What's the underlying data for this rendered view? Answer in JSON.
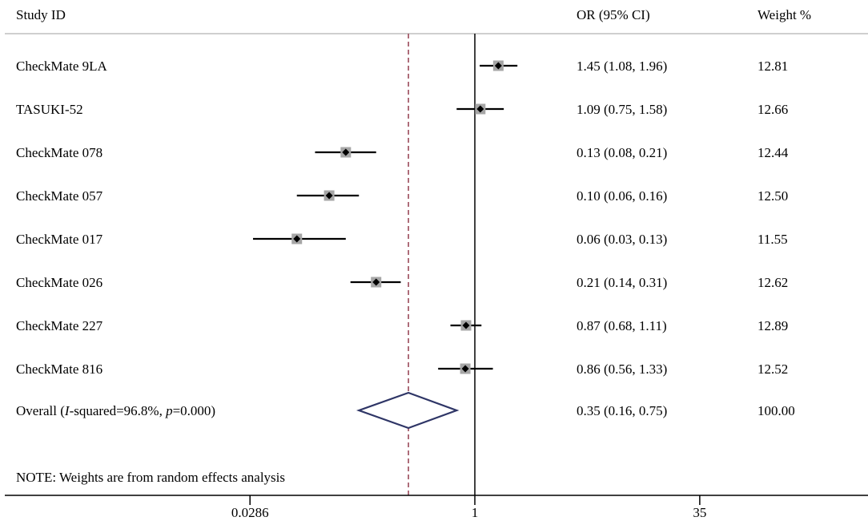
{
  "headers": {
    "study": "Study ID",
    "or": "OR (95% CI)",
    "weight": "Weight %"
  },
  "chart_data": {
    "type": "forest",
    "x_scale": "log",
    "xlim": [
      0.0286,
      35
    ],
    "x_ticks": [
      {
        "value": 0.0286,
        "label": "0.0286"
      },
      {
        "value": 1,
        "label": "1"
      },
      {
        "value": 35,
        "label": "35"
      }
    ],
    "reference_line": 1,
    "overall_line": 0.35,
    "studies": [
      {
        "name": "CheckMate 9LA",
        "or": 1.45,
        "lo": 1.08,
        "hi": 1.96,
        "or_text": "1.45 (1.08, 1.96)",
        "weight": "12.81"
      },
      {
        "name": "TASUKI-52",
        "or": 1.09,
        "lo": 0.75,
        "hi": 1.58,
        "or_text": "1.09 (0.75, 1.58)",
        "weight": "12.66"
      },
      {
        "name": "CheckMate 078",
        "or": 0.13,
        "lo": 0.08,
        "hi": 0.21,
        "or_text": "0.13 (0.08, 0.21)",
        "weight": "12.44"
      },
      {
        "name": "CheckMate 057",
        "or": 0.1,
        "lo": 0.06,
        "hi": 0.16,
        "or_text": "0.10 (0.06, 0.16)",
        "weight": "12.50"
      },
      {
        "name": "CheckMate 017",
        "or": 0.06,
        "lo": 0.03,
        "hi": 0.13,
        "or_text": "0.06 (0.03, 0.13)",
        "weight": "11.55"
      },
      {
        "name": "CheckMate 026",
        "or": 0.21,
        "lo": 0.14,
        "hi": 0.31,
        "or_text": "0.21 (0.14, 0.31)",
        "weight": "12.62"
      },
      {
        "name": "CheckMate 227",
        "or": 0.87,
        "lo": 0.68,
        "hi": 1.11,
        "or_text": "0.87 (0.68, 1.11)",
        "weight": "12.89"
      },
      {
        "name": "CheckMate 816",
        "or": 0.86,
        "lo": 0.56,
        "hi": 1.33,
        "or_text": "0.86 (0.56, 1.33)",
        "weight": "12.52"
      }
    ],
    "overall": {
      "label_prefix": "Overall (",
      "label_i": "I",
      "label_mid": "-squared=96.8%, ",
      "label_p": "p",
      "label_end": "=0.000)",
      "or": 0.35,
      "lo": 0.16,
      "hi": 0.75,
      "or_text": "0.35 (0.16, 0.75)",
      "weight": "100.00"
    },
    "note": "NOTE: Weights are from random effects analysis"
  },
  "colors": {
    "marker_box": "#a6a6a6",
    "diamond": "#2e3566",
    "overall_line": "#9b4a5a",
    "line": "#000000",
    "header_rule": "#bfbfbf"
  }
}
